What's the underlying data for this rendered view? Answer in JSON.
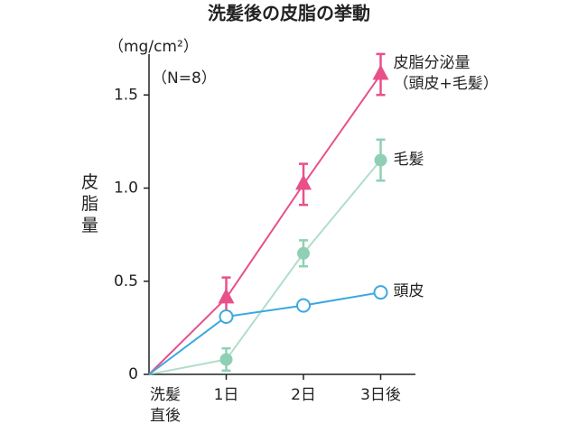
{
  "chart_data": {
    "type": "line",
    "title": "洗髪後の皮脂の挙動",
    "y_unit": "（mg/cm²）",
    "note": "（N=8）",
    "y_label": "皮脂量",
    "categories": [
      "洗髪\n直後",
      "1日",
      "2日",
      "3日後"
    ],
    "ylim": [
      0,
      1.72
    ],
    "yticks": [
      0,
      0.5,
      {
        "value": 1,
        "label": "1.0"
      },
      1.5
    ],
    "series": [
      {
        "name": "皮脂分泌量\n（頭皮+毛髪）",
        "color": "#e8508a",
        "marker": "triangle",
        "values": [
          0,
          0.41,
          1.02,
          1.61
        ],
        "errors": [
          null,
          0.11,
          0.11,
          0.11
        ]
      },
      {
        "name": "毛髪",
        "color": "#8fd0b4",
        "marker": "circle",
        "values": [
          0,
          0.08,
          0.65,
          1.15
        ],
        "errors": [
          null,
          0.06,
          0.07,
          0.11
        ]
      },
      {
        "name": "頭皮",
        "color": "#3aa8e0",
        "marker": "open-circle",
        "values": [
          0,
          0.31,
          0.37,
          0.44
        ],
        "errors": [
          null,
          null,
          null,
          null
        ]
      }
    ]
  }
}
